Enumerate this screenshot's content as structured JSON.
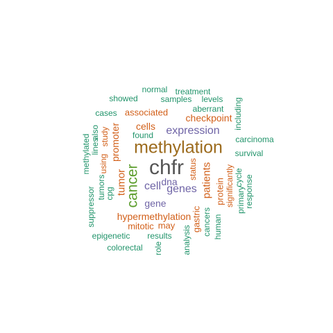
{
  "colors": {
    "gray": "#555555",
    "olive": "#9c6b1d",
    "green": "#5d9e2e",
    "purple": "#6f64a6",
    "orange": "#d2601a",
    "teal": "#22946b"
  },
  "words": [
    {
      "text": "chfr",
      "color": "gray",
      "rotated": false
    },
    {
      "text": "methylation",
      "color": "olive",
      "rotated": false
    },
    {
      "text": "cancer",
      "color": "green",
      "rotated": true
    },
    {
      "text": "expression",
      "color": "purple",
      "rotated": false
    },
    {
      "text": "genes",
      "color": "purple",
      "rotated": false
    },
    {
      "text": "cell",
      "color": "purple",
      "rotated": false
    },
    {
      "text": "dna",
      "color": "purple",
      "rotated": false
    },
    {
      "text": "gene",
      "color": "purple",
      "rotated": false
    },
    {
      "text": "tumor",
      "color": "orange",
      "rotated": true
    },
    {
      "text": "patients",
      "color": "orange",
      "rotated": true
    },
    {
      "text": "hypermethylation",
      "color": "orange",
      "rotated": false
    },
    {
      "text": "checkpoint",
      "color": "orange",
      "rotated": false
    },
    {
      "text": "cells",
      "color": "orange",
      "rotated": false
    },
    {
      "text": "promoter",
      "color": "orange",
      "rotated": true
    },
    {
      "text": "associated",
      "color": "orange",
      "rotated": false
    },
    {
      "text": "protein",
      "color": "orange",
      "rotated": true
    },
    {
      "text": "mitotic",
      "color": "orange",
      "rotated": false
    },
    {
      "text": "may",
      "color": "orange",
      "rotated": false
    },
    {
      "text": "gastric",
      "color": "orange",
      "rotated": true
    },
    {
      "text": "study",
      "color": "orange",
      "rotated": true
    },
    {
      "text": "using",
      "color": "orange",
      "rotated": true
    },
    {
      "text": "status",
      "color": "orange",
      "rotated": true
    },
    {
      "text": "significantly",
      "color": "orange",
      "rotated": true
    },
    {
      "text": "cancers",
      "color": "teal",
      "rotated": true
    },
    {
      "text": "normal",
      "color": "teal",
      "rotated": false
    },
    {
      "text": "treatment",
      "color": "teal",
      "rotated": false
    },
    {
      "text": "showed",
      "color": "teal",
      "rotated": false
    },
    {
      "text": "samples",
      "color": "teal",
      "rotated": false
    },
    {
      "text": "levels",
      "color": "teal",
      "rotated": false
    },
    {
      "text": "aberrant",
      "color": "teal",
      "rotated": false
    },
    {
      "text": "including",
      "color": "teal",
      "rotated": true
    },
    {
      "text": "cases",
      "color": "teal",
      "rotated": false
    },
    {
      "text": "found",
      "color": "teal",
      "rotated": false
    },
    {
      "text": "carcinoma",
      "color": "teal",
      "rotated": false
    },
    {
      "text": "survival",
      "color": "teal",
      "rotated": false
    },
    {
      "text": "methylated",
      "color": "teal",
      "rotated": true
    },
    {
      "text": "lines",
      "color": "teal",
      "rotated": true
    },
    {
      "text": "also",
      "color": "teal",
      "rotated": true
    },
    {
      "text": "tumors",
      "color": "teal",
      "rotated": true
    },
    {
      "text": "cpg",
      "color": "teal",
      "rotated": true
    },
    {
      "text": "suppressor",
      "color": "teal",
      "rotated": true
    },
    {
      "text": "primary",
      "color": "teal",
      "rotated": true
    },
    {
      "text": "cycle",
      "color": "teal",
      "rotated": true
    },
    {
      "text": "response",
      "color": "teal",
      "rotated": true
    },
    {
      "text": "epigenetic",
      "color": "teal",
      "rotated": false
    },
    {
      "text": "results",
      "color": "teal",
      "rotated": false
    },
    {
      "text": "analysis",
      "color": "teal",
      "rotated": true
    },
    {
      "text": "human",
      "color": "teal",
      "rotated": true
    },
    {
      "text": "colorectal",
      "color": "teal",
      "rotated": false
    },
    {
      "text": "role",
      "color": "teal",
      "rotated": true
    }
  ]
}
